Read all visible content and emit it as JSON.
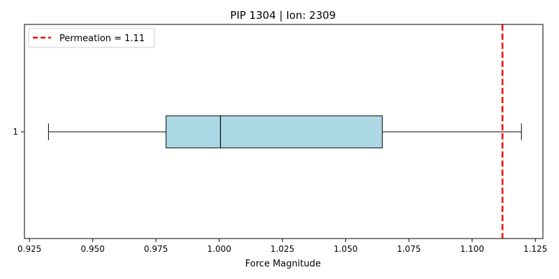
{
  "chart_data": {
    "type": "boxplot",
    "title": "PIP 1304 | Ion: 2309",
    "xlabel": "Force Magnitude",
    "ylabel": "",
    "xlim": [
      0.923,
      1.128
    ],
    "x_ticks": [
      0.925,
      0.95,
      0.975,
      1.0,
      1.025,
      1.05,
      1.075,
      1.1,
      1.125
    ],
    "x_tick_labels": [
      "0.925",
      "0.950",
      "0.975",
      "1.000",
      "1.025",
      "1.050",
      "1.075",
      "1.100",
      "1.125"
    ],
    "y_tick_labels": [
      "1"
    ],
    "orientation": "horizontal",
    "box": {
      "category": "1",
      "whisker_low": 0.9325,
      "q1": 0.979,
      "median": 1.0005,
      "q3": 1.0645,
      "whisker_high": 1.1195,
      "fill_color": "#add8e6"
    },
    "reference_line": {
      "value": 1.112,
      "style": "dashed",
      "color": "#ff0000",
      "legend_label": "Permeation = 1.11"
    },
    "legend": {
      "position": "upper-left"
    },
    "grid": false
  }
}
